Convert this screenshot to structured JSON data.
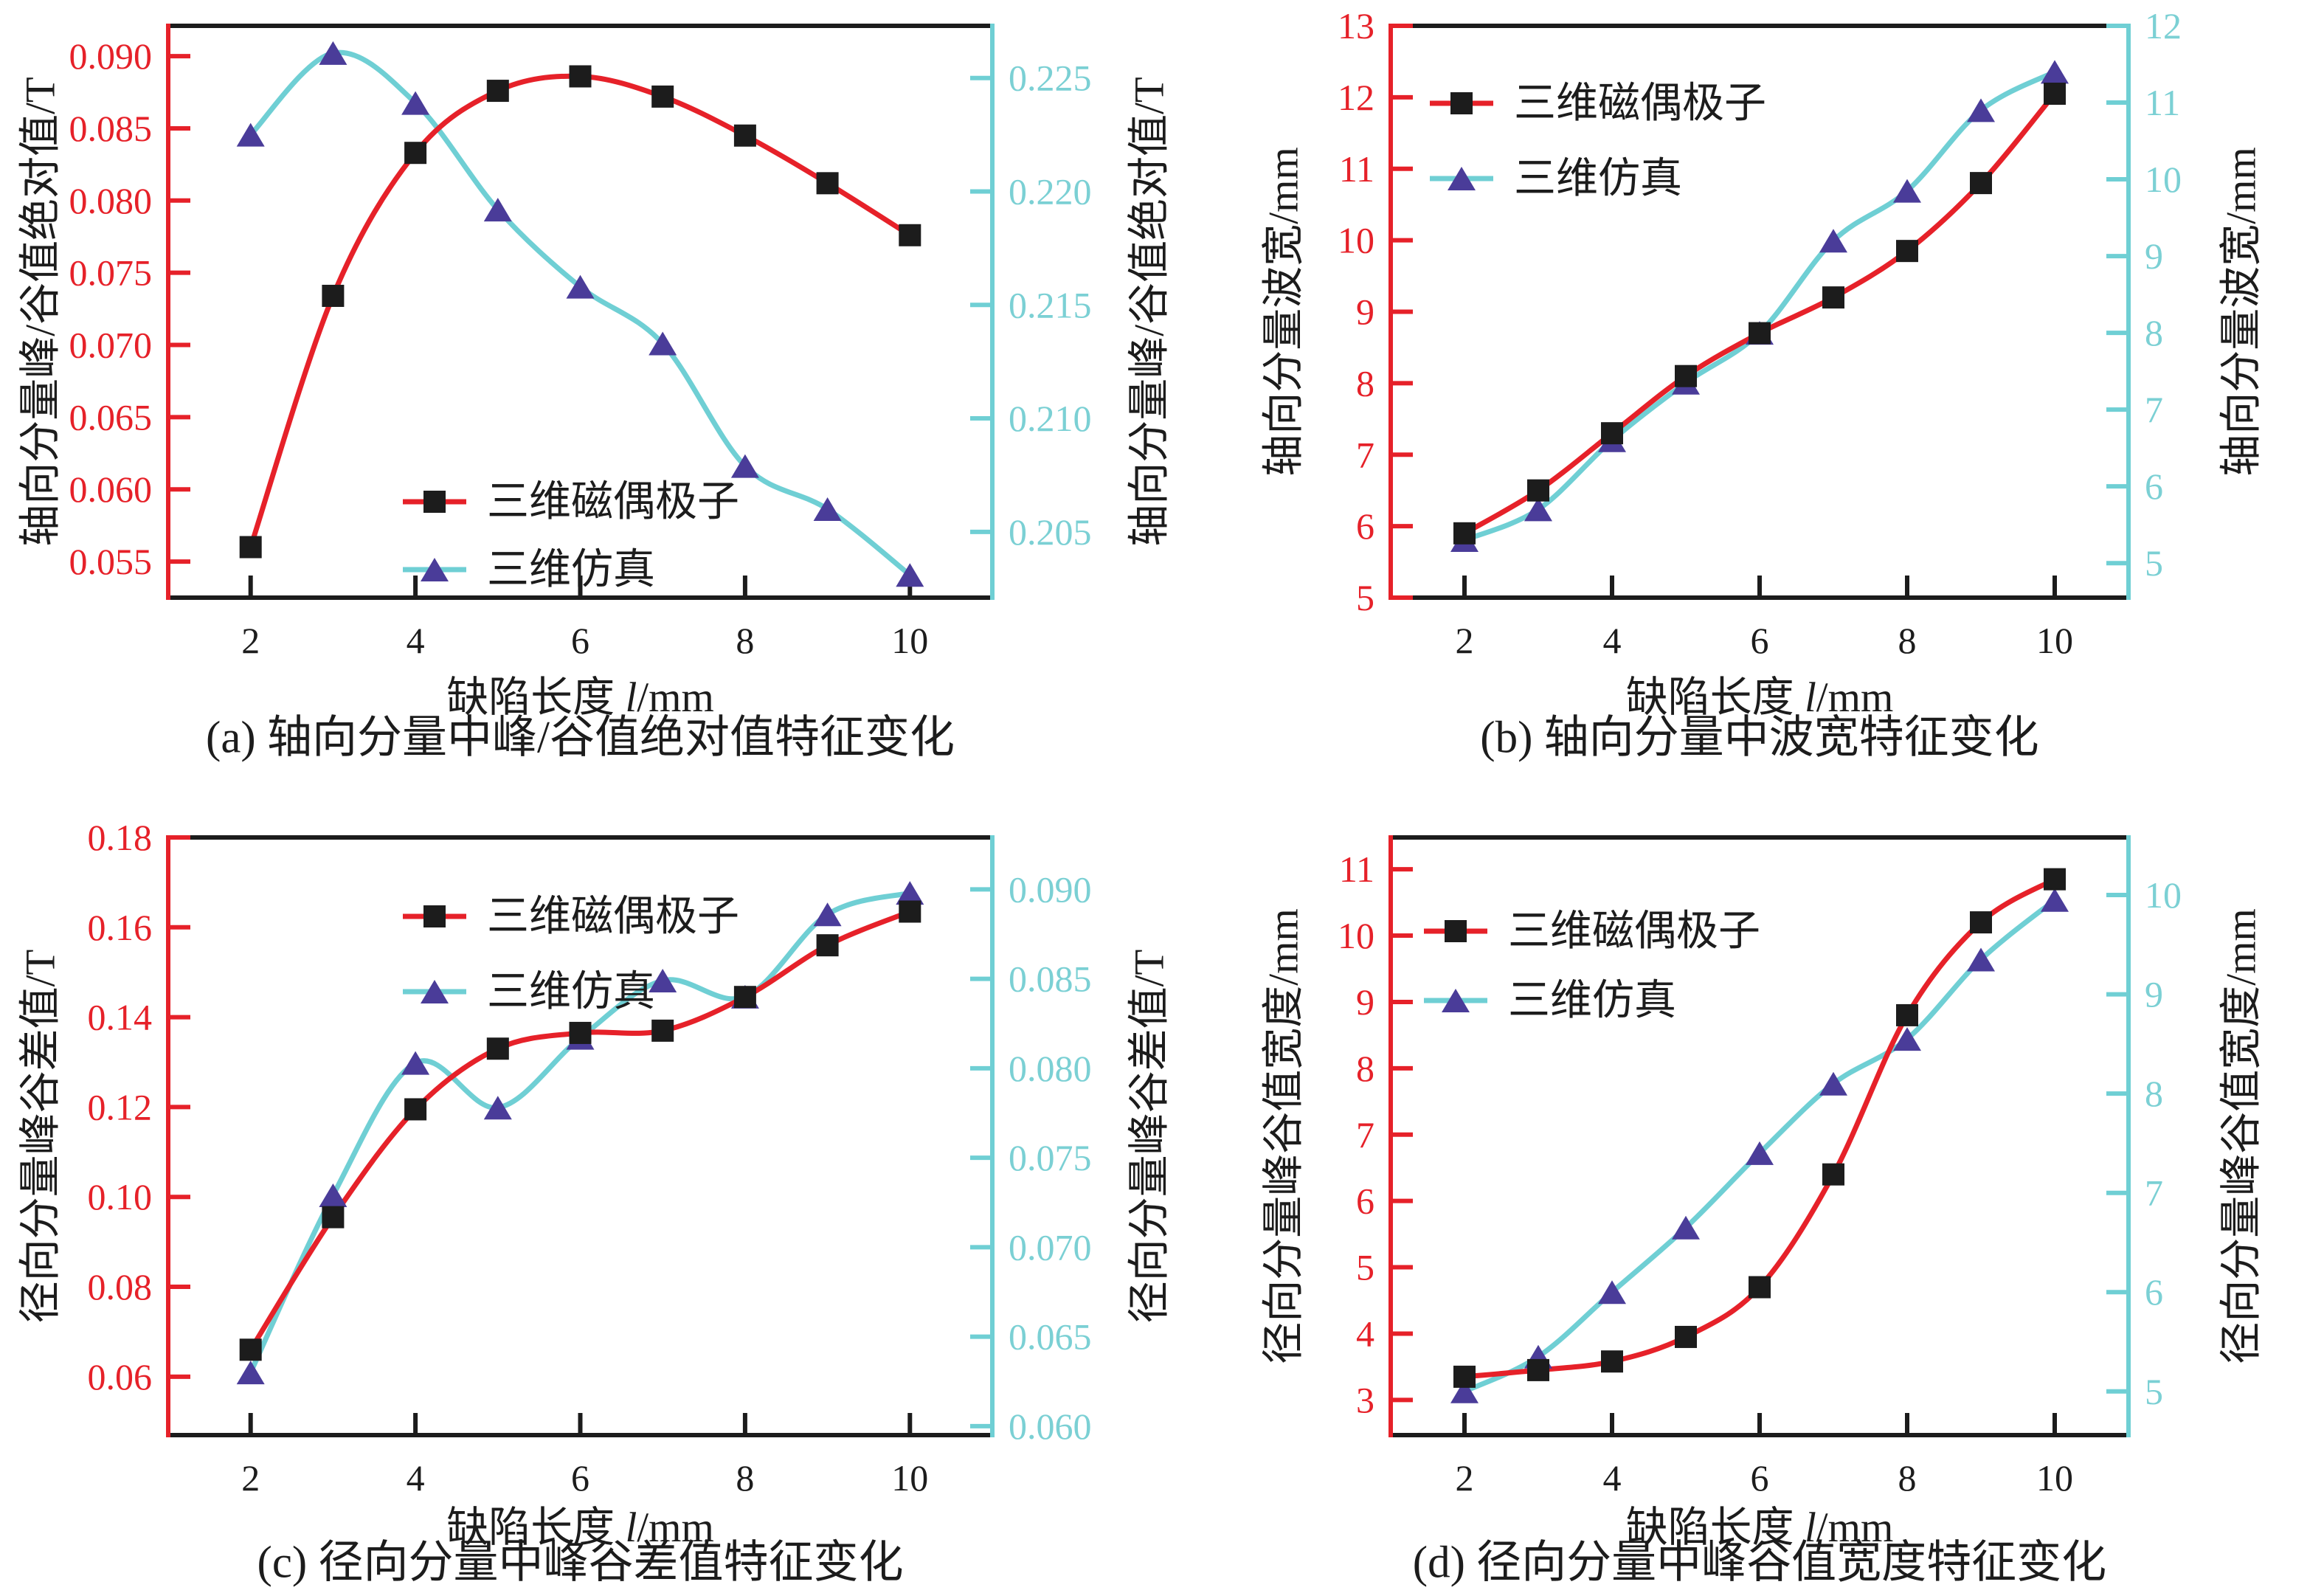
{
  "figure": {
    "description": "2x2 grid of dual-axis line charts of MFL defect features vs defect length",
    "background": "#ffffff"
  },
  "colors": {
    "dipole_line": "#e62129",
    "dipole_marker": "#1c1c1c",
    "simulation_line": "#6fcfd4",
    "simulation_marker": "#4a3c99",
    "right_tick_text": "#7bd0d4",
    "left_tick_text": "#e62129",
    "frame": "#1c1c1c",
    "text": "#1c1c1c"
  },
  "legend": {
    "dipole_label": "三维磁偶极子",
    "simulation_label": "三维仿真"
  },
  "chart_data": [
    {
      "id": "a",
      "type": "line",
      "caption": "(a) 轴向分量中峰/谷值绝对值特征变化",
      "xlabel_prefix": "缺陷长度 ",
      "xlabel_italic": "l",
      "xlabel_suffix": "/mm",
      "ylabel_left": "轴向分量峰/谷值绝对值/T",
      "ylabel_right": "轴向分量峰/谷值绝对值/T",
      "x": [
        2,
        3,
        4,
        5,
        6,
        7,
        8,
        9,
        10
      ],
      "xlim": [
        1,
        11
      ],
      "xticks": [
        2,
        4,
        6,
        8,
        10
      ],
      "left_axis": {
        "lim": [
          0.0525,
          0.0921
        ],
        "ticks": [
          0.055,
          0.06,
          0.065,
          0.07,
          0.075,
          0.08,
          0.085,
          0.09
        ],
        "tick_labels": [
          "0.055",
          "0.060",
          "0.065",
          "0.070",
          "0.075",
          "0.080",
          "0.085",
          "0.090"
        ]
      },
      "right_axis": {
        "lim": [
          0.2021,
          0.2273
        ],
        "ticks": [
          0.205,
          0.21,
          0.215,
          0.22,
          0.225
        ],
        "tick_labels": [
          "0.205",
          "0.210",
          "0.215",
          "0.220",
          "0.225"
        ]
      },
      "series": [
        {
          "name": "三维磁偶极子",
          "axis": "left",
          "marker": "square",
          "values": [
            0.056,
            0.0734,
            0.0833,
            0.0876,
            0.0886,
            0.0872,
            0.0845,
            0.0812,
            0.0776
          ]
        },
        {
          "name": "三维仿真",
          "axis": "right",
          "marker": "triangle",
          "values": [
            0.2225,
            0.2261,
            0.2239,
            0.2192,
            0.2158,
            0.2133,
            0.2079,
            0.206,
            0.2031
          ]
        }
      ],
      "legend_position": "inside-left-lower-middle"
    },
    {
      "id": "b",
      "type": "line",
      "caption": "(b) 轴向分量中波宽特征变化",
      "xlabel_prefix": "缺陷长度 ",
      "xlabel_italic": "l",
      "xlabel_suffix": "/mm",
      "ylabel_left": "轴向分量波宽/mm",
      "ylabel_right": "轴向分量波宽/mm",
      "x": [
        2,
        3,
        4,
        5,
        6,
        7,
        8,
        9,
        10
      ],
      "xlim": [
        1,
        11
      ],
      "xticks": [
        2,
        4,
        6,
        8,
        10
      ],
      "left_axis": {
        "lim": [
          5,
          13
        ],
        "ticks": [
          5,
          6,
          7,
          8,
          9,
          10,
          11,
          12,
          13
        ],
        "tick_labels": [
          "5",
          "6",
          "7",
          "8",
          "9",
          "10",
          "11",
          "12",
          "13"
        ]
      },
      "right_axis": {
        "lim": [
          4.55,
          12
        ],
        "ticks": [
          5,
          6,
          7,
          8,
          9,
          10,
          11,
          12
        ],
        "tick_labels": [
          "5",
          "6",
          "7",
          "8",
          "9",
          "10",
          "11",
          "12"
        ]
      },
      "series": [
        {
          "name": "三维磁偶极子",
          "axis": "left",
          "marker": "square",
          "values": [
            5.9,
            6.5,
            7.3,
            8.1,
            8.7,
            9.2,
            9.85,
            10.8,
            12.05
          ]
        },
        {
          "name": "三维仿真",
          "axis": "right",
          "marker": "triangle",
          "values": [
            5.3,
            5.7,
            6.6,
            7.35,
            8.0,
            9.2,
            9.85,
            10.9,
            11.4
          ]
        }
      ],
      "legend_position": "inside-top-left"
    },
    {
      "id": "c",
      "type": "line",
      "caption": "(c) 径向分量中峰谷差值特征变化",
      "xlabel_prefix": "缺陷长度 ",
      "xlabel_italic": "l",
      "xlabel_suffix": "/mm",
      "ylabel_left": "径向分量峰谷差值/T",
      "ylabel_right": "径向分量峰谷差值/T",
      "x": [
        2,
        3,
        4,
        5,
        6,
        7,
        8,
        9,
        10
      ],
      "xlim": [
        1,
        11
      ],
      "xticks": [
        2,
        4,
        6,
        8,
        10
      ],
      "left_axis": {
        "lim": [
          0.047,
          0.18
        ],
        "ticks": [
          0.06,
          0.08,
          0.1,
          0.12,
          0.14,
          0.16,
          0.18
        ],
        "tick_labels": [
          "0.06",
          "0.08",
          "0.10",
          "0.12",
          "0.14",
          "0.16",
          "0.18"
        ]
      },
      "right_axis": {
        "lim": [
          0.0595,
          0.0929
        ],
        "ticks": [
          0.06,
          0.065,
          0.07,
          0.075,
          0.08,
          0.085,
          0.09
        ],
        "tick_labels": [
          "0.060",
          "0.065",
          "0.070",
          "0.075",
          "0.080",
          "0.085",
          "0.090"
        ]
      },
      "series": [
        {
          "name": "三维磁偶极子",
          "axis": "left",
          "marker": "square",
          "values": [
            0.066,
            0.0955,
            0.1195,
            0.133,
            0.1365,
            0.137,
            0.1445,
            0.156,
            0.1635
          ]
        },
        {
          "name": "三维仿真",
          "axis": "right",
          "marker": "triangle",
          "values": [
            0.063,
            0.0729,
            0.0803,
            0.0778,
            0.0817,
            0.0849,
            0.084,
            0.0886,
            0.0898
          ]
        }
      ],
      "legend_position": "inside-top-left"
    },
    {
      "id": "d",
      "type": "line",
      "caption": "(d) 径向分量中峰谷值宽度特征变化",
      "xlabel_prefix": "缺陷长度 ",
      "xlabel_italic": "l",
      "xlabel_suffix": "/mm",
      "ylabel_left": "径向分量峰谷值宽度/mm",
      "ylabel_right": "径向分量峰谷值宽度/mm",
      "x": [
        2,
        3,
        4,
        5,
        6,
        7,
        8,
        9,
        10
      ],
      "xlim": [
        1,
        11
      ],
      "xticks": [
        2,
        4,
        6,
        8,
        10
      ],
      "left_axis": {
        "lim": [
          2.47,
          11.48
        ],
        "ticks": [
          3,
          4,
          5,
          6,
          7,
          8,
          9,
          10,
          11
        ],
        "tick_labels": [
          "3",
          "4",
          "5",
          "6",
          "7",
          "8",
          "9",
          "10",
          "11"
        ]
      },
      "right_axis": {
        "lim": [
          4.56,
          10.58
        ],
        "ticks": [
          5,
          6,
          7,
          8,
          9,
          10
        ],
        "tick_labels": [
          "5",
          "6",
          "7",
          "8",
          "9",
          "10"
        ]
      },
      "series": [
        {
          "name": "三维磁偶极子",
          "axis": "left",
          "marker": "square",
          "values": [
            3.35,
            3.45,
            3.58,
            3.95,
            4.7,
            6.4,
            8.8,
            10.2,
            10.85
          ]
        },
        {
          "name": "三维仿真",
          "axis": "right",
          "marker": "triangle",
          "values": [
            5.0,
            5.35,
            6.0,
            6.65,
            7.4,
            8.1,
            8.55,
            9.35,
            9.95
          ]
        }
      ],
      "legend_position": "inside-top-left"
    }
  ]
}
